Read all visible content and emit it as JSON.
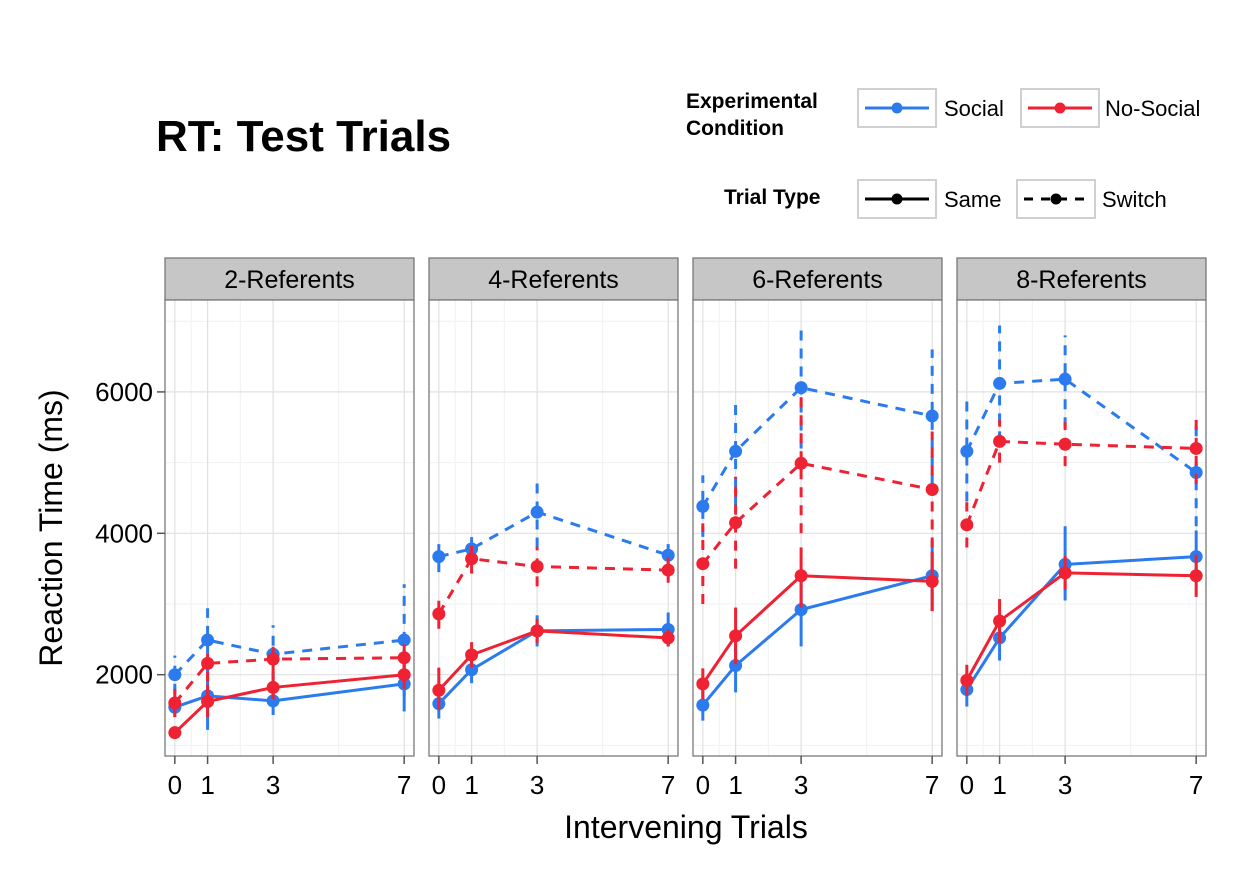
{
  "chart_data": {
    "type": "line",
    "title": "RT: Test Trials",
    "xlabel": "Intervening Trials",
    "ylabel": "Reaction Time (ms)",
    "x_ticks": [
      0,
      1,
      3,
      7
    ],
    "y_ticks": [
      2000,
      4000,
      6000
    ],
    "ylim": [
      850,
      7300
    ],
    "xlim": [
      -0.3,
      7.3
    ],
    "grid": true,
    "legends": {
      "condition": {
        "title": "Experimental Condition",
        "entries": [
          {
            "name": "Social",
            "color": "#2b7bef"
          },
          {
            "name": "No-Social",
            "color": "#ee2233"
          }
        ]
      },
      "trial_type": {
        "title": "Trial Type",
        "entries": [
          {
            "name": "Same",
            "linestyle": "solid"
          },
          {
            "name": "Switch",
            "linestyle": "dashed"
          }
        ]
      }
    },
    "panels": [
      {
        "name": "2-Referents",
        "series": [
          {
            "condition": "Social",
            "type": "Same",
            "x": [
              0,
              1,
              3,
              7
            ],
            "y": [
              1540,
              1700,
              1630,
              1870
            ],
            "err_low": [
              1400,
              1220,
              1430,
              1480
            ],
            "err_high": [
              1690,
              2180,
              1830,
              2260
            ]
          },
          {
            "condition": "Social",
            "type": "Switch",
            "x": [
              0,
              1,
              3,
              7
            ],
            "y": [
              2000,
              2490,
              2290,
              2490
            ],
            "err_low": [
              1730,
              2040,
              1900,
              1700
            ],
            "err_high": [
              2270,
              2940,
              2700,
              3280
            ]
          },
          {
            "condition": "No-Social",
            "type": "Same",
            "x": [
              0,
              1,
              3,
              7
            ],
            "y": [
              1180,
              1620,
              1820,
              2000
            ],
            "err_low": [
              1100,
              1400,
              1650,
              1800
            ],
            "err_high": [
              1250,
              1860,
              2000,
              2200
            ]
          },
          {
            "condition": "No-Social",
            "type": "Switch",
            "x": [
              0,
              1,
              3,
              7
            ],
            "y": [
              1600,
              2160,
              2220,
              2240
            ],
            "err_low": [
              1400,
              1900,
              2000,
              2050
            ],
            "err_high": [
              1800,
              2400,
              2440,
              2430
            ]
          }
        ]
      },
      {
        "name": "4-Referents",
        "series": [
          {
            "condition": "Social",
            "type": "Same",
            "x": [
              0,
              1,
              3,
              7
            ],
            "y": [
              1590,
              2070,
              2620,
              2640
            ],
            "err_low": [
              1380,
              1880,
              2400,
              2400
            ],
            "err_high": [
              1800,
              2260,
              2840,
              2880
            ]
          },
          {
            "condition": "Social",
            "type": "Switch",
            "x": [
              0,
              1,
              3,
              7
            ],
            "y": [
              3670,
              3780,
              4300,
              3690
            ],
            "err_low": [
              3450,
              3550,
              3800,
              3450
            ],
            "err_high": [
              3900,
              4000,
              4800,
              3930
            ]
          },
          {
            "condition": "No-Social",
            "type": "Same",
            "x": [
              0,
              1,
              3,
              7
            ],
            "y": [
              1780,
              2280,
              2620,
              2520
            ],
            "err_low": [
              1500,
              2100,
              2450,
              2400
            ],
            "err_high": [
              2100,
              2460,
              2790,
              2640
            ]
          },
          {
            "condition": "No-Social",
            "type": "Switch",
            "x": [
              0,
              1,
              3,
              7
            ],
            "y": [
              2860,
              3640,
              3530,
              3480
            ],
            "err_low": [
              2650,
              3430,
              3250,
              3300
            ],
            "err_high": [
              3080,
              3850,
              3810,
              3660
            ]
          }
        ]
      },
      {
        "name": "6-Referents",
        "series": [
          {
            "condition": "Social",
            "type": "Same",
            "x": [
              0,
              1,
              3,
              7
            ],
            "y": [
              1570,
              2130,
              2920,
              3400
            ],
            "err_low": [
              1350,
              1750,
              2400,
              2900
            ],
            "err_high": [
              1790,
              2510,
              3440,
              3900
            ]
          },
          {
            "condition": "Social",
            "type": "Switch",
            "x": [
              0,
              1,
              3,
              7
            ],
            "y": [
              4380,
              5160,
              6060,
              5660
            ],
            "err_low": [
              3950,
              4400,
              5200,
              4700
            ],
            "err_high": [
              4820,
              5900,
              6900,
              6600
            ]
          },
          {
            "condition": "No-Social",
            "type": "Same",
            "x": [
              0,
              1,
              3,
              7
            ],
            "y": [
              1870,
              2550,
              3400,
              3320
            ],
            "err_low": [
              1650,
              2150,
              2950,
              2900
            ],
            "err_high": [
              2090,
              2950,
              3800,
              3740
            ]
          },
          {
            "condition": "No-Social",
            "type": "Switch",
            "x": [
              0,
              1,
              3,
              7
            ],
            "y": [
              3570,
              4150,
              4990,
              4620
            ],
            "err_low": [
              3000,
              3500,
              4000,
              3800
            ],
            "err_high": [
              4140,
              4800,
              5980,
              5440
            ]
          }
        ]
      },
      {
        "name": "8-Referents",
        "series": [
          {
            "condition": "Social",
            "type": "Same",
            "x": [
              0,
              1,
              3,
              7
            ],
            "y": [
              1790,
              2520,
              3560,
              3670
            ],
            "err_low": [
              1550,
              2200,
              3050,
              3300
            ],
            "err_high": [
              2030,
              2840,
              4100,
              4040
            ]
          },
          {
            "condition": "Social",
            "type": "Switch",
            "x": [
              0,
              1,
              3,
              7
            ],
            "y": [
              5160,
              6120,
              6180,
              4860
            ],
            "err_low": [
              4450,
              5300,
              5500,
              4100
            ],
            "err_high": [
              5880,
              6940,
              6800,
              5620
            ]
          },
          {
            "condition": "No-Social",
            "type": "Same",
            "x": [
              0,
              1,
              3,
              7
            ],
            "y": [
              1920,
              2760,
              3440,
              3400
            ],
            "err_low": [
              1700,
              2450,
              3200,
              3100
            ],
            "err_high": [
              2140,
              3070,
              3680,
              3700
            ]
          },
          {
            "condition": "No-Social",
            "type": "Switch",
            "x": [
              0,
              1,
              3,
              7
            ],
            "y": [
              4120,
              5300,
              5260,
              5200
            ],
            "err_low": [
              3800,
              5000,
              4950,
              4700
            ],
            "err_high": [
              4440,
              5600,
              5570,
              5700
            ]
          }
        ]
      }
    ]
  }
}
